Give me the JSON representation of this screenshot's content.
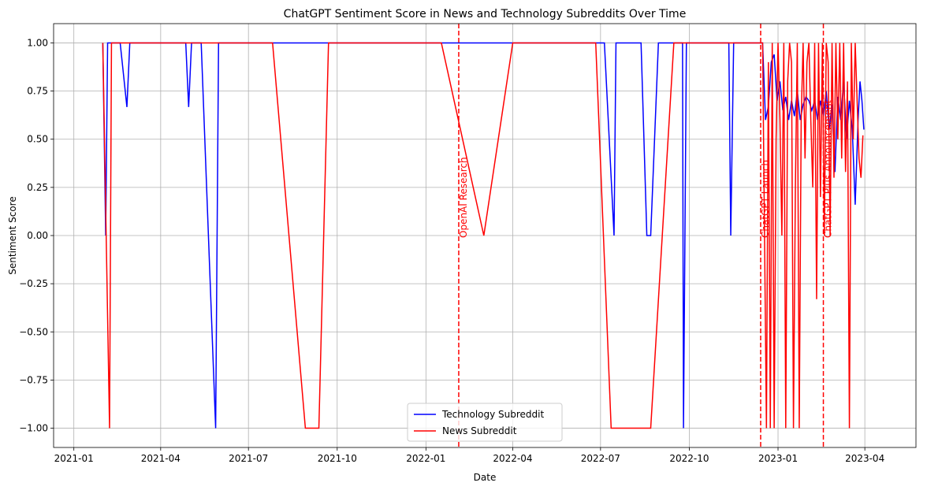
{
  "chart_data": {
    "type": "line",
    "title": "ChatGPT Sentiment Score in News and Technology Subreddits Over Time",
    "xlabel": "Date",
    "ylabel": "Sentiment Score",
    "xlim": [
      "2020-12-11",
      "2023-05-24"
    ],
    "ylim": [
      -1.1,
      1.1
    ],
    "xticks": [
      "2021-01",
      "2021-04",
      "2021-07",
      "2021-10",
      "2022-01",
      "2022-04",
      "2022-07",
      "2022-10",
      "2023-01",
      "2023-04"
    ],
    "yticks": [
      {
        "value": -1,
        "label": "−1.00"
      },
      {
        "value": -0.75,
        "label": "−0.75"
      },
      {
        "value": -0.5,
        "label": "−0.50"
      },
      {
        "value": -0.25,
        "label": "−0.25"
      },
      {
        "value": 0,
        "label": "0.00"
      },
      {
        "value": 0.25,
        "label": "0.25"
      },
      {
        "value": 0.5,
        "label": "0.50"
      },
      {
        "value": 0.75,
        "label": "0.75"
      },
      {
        "value": 1,
        "label": "1.00"
      }
    ],
    "grid": true,
    "legend": "lower center",
    "annotations": [
      {
        "x": "2022-02-04",
        "label": "OpenAI Research",
        "color": "#ff0000"
      },
      {
        "x": "2022-12-14",
        "label": "ChatGPT Launch",
        "color": "#ff0000"
      },
      {
        "x": "2023-02-17",
        "label": "ChatGPT Plus Announcement",
        "color": "#ff0000"
      }
    ],
    "series": [
      {
        "name": "Technology Subreddit",
        "color": "#0000ff",
        "x": [
          "2021-01-31",
          "2021-02-03",
          "2021-02-05",
          "2021-02-18",
          "2021-02-25",
          "2021-02-28",
          "2021-04-27",
          "2021-04-30",
          "2021-05-03",
          "2021-05-13",
          "2021-05-28",
          "2021-05-31",
          "2022-07-05",
          "2022-07-15",
          "2022-07-17",
          "2022-08-12",
          "2022-08-18",
          "2022-08-22",
          "2022-08-30",
          "2022-09-24",
          "2022-09-25",
          "2022-09-28",
          "2022-11-11",
          "2022-11-13",
          "2022-11-16",
          "2022-12-16",
          "2022-12-19",
          "2022-12-22",
          "2022-12-25",
          "2022-12-28",
          "2022-12-31",
          "2023-01-03",
          "2023-01-06",
          "2023-01-09",
          "2023-01-12",
          "2023-01-15",
          "2023-01-18",
          "2023-01-21",
          "2023-01-24",
          "2023-01-27",
          "2023-01-30",
          "2023-02-02",
          "2023-02-05",
          "2023-02-08",
          "2023-02-11",
          "2023-02-14",
          "2023-02-17",
          "2023-02-20",
          "2023-02-23",
          "2023-02-26",
          "2023-03-01",
          "2023-03-04",
          "2023-03-07",
          "2023-03-10",
          "2023-03-13",
          "2023-03-16",
          "2023-03-19",
          "2023-03-22",
          "2023-03-25",
          "2023-03-27",
          "2023-03-29",
          "2023-03-31"
        ],
        "values": [
          1,
          0,
          1,
          1,
          0.667,
          1,
          1,
          0.667,
          1,
          1,
          -1,
          1,
          1,
          0,
          1,
          1,
          0,
          0,
          1,
          1,
          -1,
          1,
          1,
          0,
          1,
          1,
          0.6,
          0.67,
          0.9,
          0.94,
          0.7,
          0.8,
          0.65,
          0.72,
          0.6,
          0.7,
          0.62,
          0.75,
          0.6,
          0.68,
          0.72,
          0.7,
          0.65,
          0.7,
          0.6,
          0.7,
          0.62,
          0.75,
          0.55,
          0.68,
          0.33,
          0.72,
          0.6,
          0.8,
          0.5,
          0.7,
          0.55,
          0.16,
          0.6,
          0.8,
          0.7,
          0.55
        ]
      },
      {
        "name": "News Subreddit",
        "color": "#ff0000",
        "x": [
          "2021-01-31",
          "2021-02-07",
          "2021-02-09",
          "2021-07-26",
          "2021-08-29",
          "2021-09-12",
          "2021-09-22",
          "2022-01-17",
          "2022-03-02",
          "2022-04-01",
          "2022-06-26",
          "2022-07-12",
          "2022-08-22",
          "2022-09-15",
          "2022-12-16",
          "2022-12-18",
          "2022-12-20",
          "2022-12-22",
          "2022-12-24",
          "2022-12-26",
          "2022-12-28",
          "2022-12-30",
          "2023-01-01",
          "2023-01-03",
          "2023-01-05",
          "2023-01-07",
          "2023-01-09",
          "2023-01-11",
          "2023-01-13",
          "2023-01-15",
          "2023-01-17",
          "2023-01-19",
          "2023-01-21",
          "2023-01-23",
          "2023-01-25",
          "2023-01-27",
          "2023-01-29",
          "2023-01-31",
          "2023-02-02",
          "2023-02-04",
          "2023-02-06",
          "2023-02-08",
          "2023-02-10",
          "2023-02-12",
          "2023-02-14",
          "2023-02-16",
          "2023-02-18",
          "2023-02-20",
          "2023-02-22",
          "2023-02-24",
          "2023-02-26",
          "2023-02-28",
          "2023-03-02",
          "2023-03-04",
          "2023-03-06",
          "2023-03-08",
          "2023-03-10",
          "2023-03-12",
          "2023-03-14",
          "2023-03-16",
          "2023-03-18",
          "2023-03-20",
          "2023-03-22",
          "2023-03-24",
          "2023-03-26",
          "2023-03-28",
          "2023-03-30"
        ],
        "values": [
          1,
          -1,
          1,
          1,
          -1,
          -1,
          1,
          1,
          0,
          1,
          1,
          -1,
          -1,
          1,
          1,
          0,
          -1,
          0.9,
          -1,
          1,
          -1,
          0.5,
          1,
          0.6,
          0,
          1,
          -1,
          0.8,
          1,
          0.9,
          -1,
          0.25,
          1,
          -1,
          0.6,
          1,
          0.4,
          0.9,
          1,
          0.6,
          0.25,
          1,
          -0.33,
          1,
          0.2,
          1,
          0,
          1,
          0.9,
          0,
          1,
          0.3,
          1,
          0.5,
          1,
          0.4,
          1,
          0.33,
          0.8,
          -1,
          1,
          0.5,
          1,
          0.7,
          0.4,
          0.3,
          0.52
        ]
      }
    ]
  }
}
